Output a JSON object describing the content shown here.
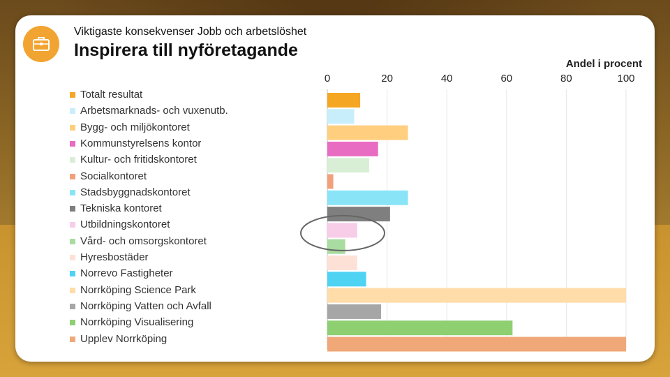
{
  "header": {
    "subtitle": "Viktigaste konsekvenser Jobb och arbetslöshet",
    "title": "Inspirera till nyföretagande",
    "icon": "briefcase-icon",
    "accent": "#f2a432"
  },
  "chart_data": {
    "type": "bar",
    "orientation": "horizontal",
    "title": "",
    "xlabel": "Andel i procent",
    "xlim": [
      0,
      100
    ],
    "xticks": [
      "0",
      "20",
      "40",
      "60",
      "80",
      "100"
    ],
    "grid": true,
    "legend_position": "left",
    "categories": [
      "Totalt resultat",
      "Arbetsmarknads- och vuxenutb.",
      "Bygg- och miljökontoret",
      "Kommunstyrelsens kontor",
      "Kultur- och fritidskontoret",
      "Socialkontoret",
      "Stadsbyggnadskontoret",
      "Tekniska kontoret",
      "Utbildningskontoret",
      "Vård- och omsorgskontoret",
      "Hyresbostäder",
      "Norrevo Fastigheter",
      "Norrköping Science Park",
      "Norrköping Vatten och Avfall",
      "Norrköping Visualisering",
      "Upplev Norrköping"
    ],
    "values": [
      11,
      9,
      27,
      17,
      14,
      2,
      27,
      21,
      10,
      6,
      10,
      13,
      100,
      18,
      62,
      100
    ],
    "colors": [
      "#f5a623",
      "#c9eefb",
      "#ffcf7f",
      "#e96cc3",
      "#d8efd6",
      "#f1a07b",
      "#8ae4f7",
      "#7f7f7f",
      "#f7cde8",
      "#a9dca0",
      "#fde1d6",
      "#4ed3f3",
      "#ffdca8",
      "#a6a6a6",
      "#8ecf72",
      "#f0a878"
    ],
    "highlight_index": 8
  }
}
